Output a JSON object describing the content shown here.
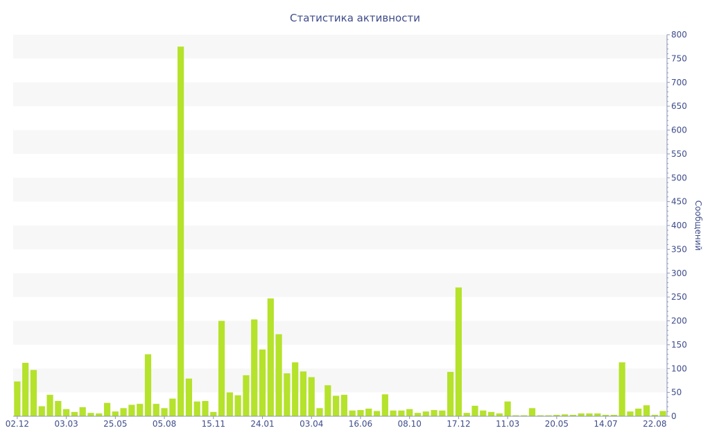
{
  "chart_data": {
    "type": "bar",
    "title": "Статистика активности",
    "xlabel": "",
    "ylabel": "Сообщений",
    "ylim": [
      0,
      800
    ],
    "y_axis_position": "right",
    "yticks": [
      0,
      50,
      100,
      150,
      200,
      250,
      300,
      350,
      400,
      450,
      500,
      550,
      600,
      650,
      700,
      750,
      800
    ],
    "grid": "alternating horizontal bands",
    "bar_color": "#b5e22b",
    "band_color": "#f7f7f7",
    "text_color": "#3e4c8a",
    "x_tick_labels": [
      {
        "index": 0,
        "label": "02.12"
      },
      {
        "index": 6,
        "label": "03.03"
      },
      {
        "index": 12,
        "label": "25.05"
      },
      {
        "index": 18,
        "label": "05.08"
      },
      {
        "index": 24,
        "label": "15.11"
      },
      {
        "index": 30,
        "label": "24.01"
      },
      {
        "index": 36,
        "label": "03.04"
      },
      {
        "index": 42,
        "label": "16.06"
      },
      {
        "index": 48,
        "label": "08.10"
      },
      {
        "index": 54,
        "label": "17.12"
      },
      {
        "index": 60,
        "label": "11.03"
      },
      {
        "index": 66,
        "label": "20.05"
      },
      {
        "index": 72,
        "label": "14.07"
      },
      {
        "index": 78,
        "label": "22.08"
      }
    ],
    "values": [
      73,
      112,
      97,
      21,
      45,
      32,
      15,
      9,
      19,
      7,
      6,
      28,
      10,
      17,
      24,
      26,
      130,
      26,
      17,
      37,
      775,
      79,
      31,
      32,
      9,
      200,
      50,
      44,
      86,
      203,
      140,
      247,
      172,
      90,
      113,
      94,
      82,
      17,
      65,
      43,
      45,
      12,
      13,
      16,
      11,
      46,
      12,
      12,
      15,
      7,
      10,
      13,
      12,
      93,
      270,
      7,
      22,
      12,
      9,
      6,
      31,
      2,
      2,
      17,
      2,
      2,
      3,
      4,
      3,
      6,
      6,
      6,
      3,
      3,
      113,
      10,
      16,
      23,
      3,
      11
    ]
  }
}
